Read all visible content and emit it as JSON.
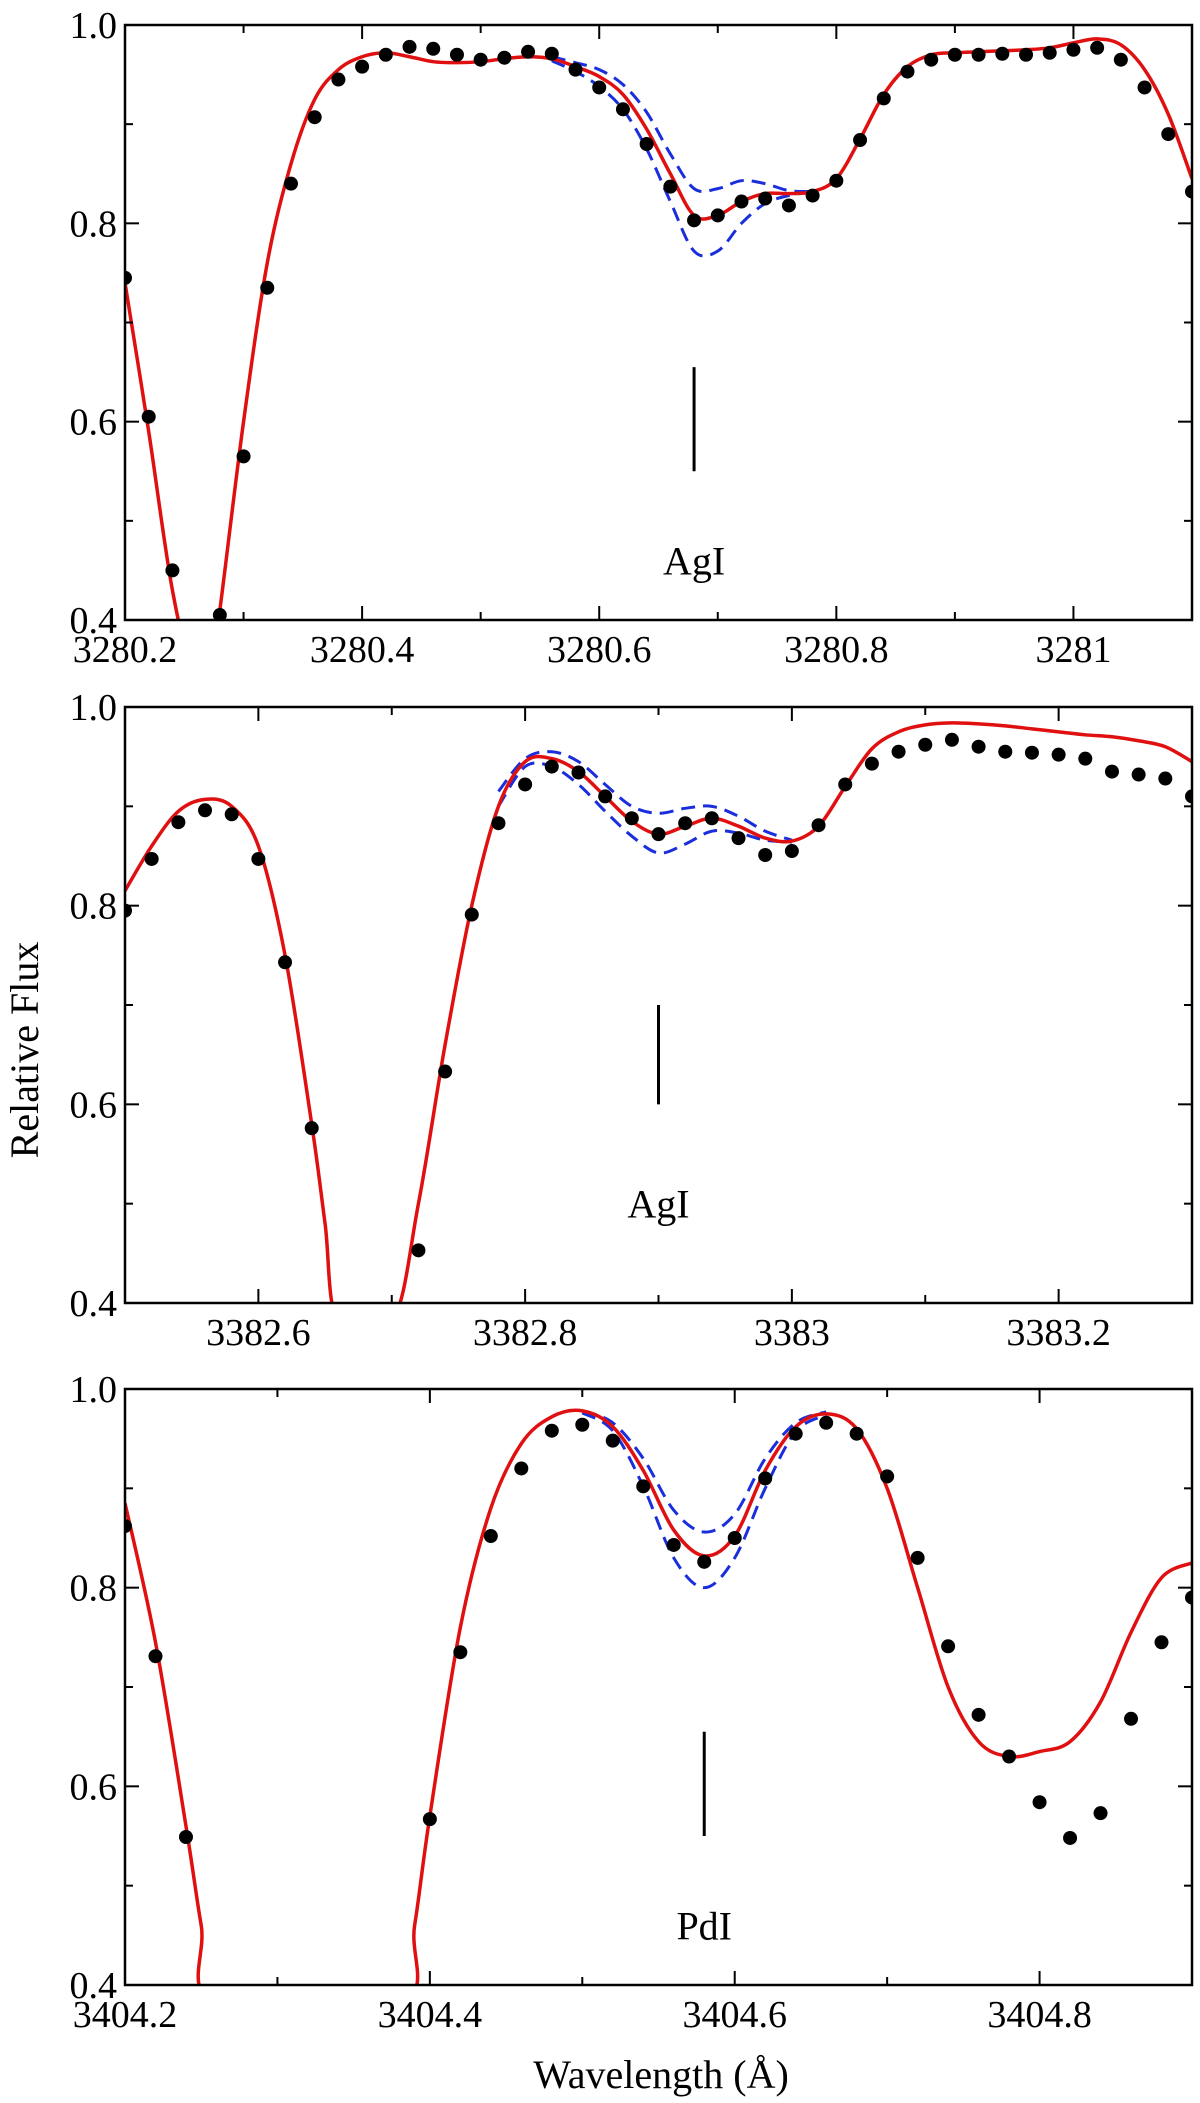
{
  "figure": {
    "ylabel": "Relative Flux",
    "xlabel": "Wavelength (Å)"
  },
  "chart_data": [
    {
      "type": "line",
      "xlim": [
        3280.2,
        3281.1
      ],
      "ylim": [
        0.4,
        1.0
      ],
      "xticks": [
        3280.2,
        3280.4,
        3280.6,
        3280.8,
        3281
      ],
      "xtick_labels": [
        "3280.2",
        "3280.4",
        "3280.6",
        "3280.8",
        "3281"
      ],
      "yticks": [
        0.4,
        0.6,
        0.8,
        1.0
      ],
      "ytick_labels": [
        "0.4",
        "0.6",
        "0.8",
        "1.0"
      ],
      "line_marker": {
        "x": 3280.68,
        "y": [
          0.55,
          0.655
        ],
        "label": "AgI",
        "label_y": 0.46
      },
      "series": [
        {
          "role": "observed",
          "style": "points",
          "color": "#000000",
          "x": [
            3280.2,
            3280.22,
            3280.24,
            3280.28,
            3280.3,
            3280.32,
            3280.34,
            3280.36,
            3280.38,
            3280.4,
            3280.42,
            3280.44,
            3280.46,
            3280.48,
            3280.5,
            3280.52,
            3280.54,
            3280.56,
            3280.58,
            3280.6,
            3280.62,
            3280.64,
            3280.66,
            3280.68,
            3280.7,
            3280.72,
            3280.74,
            3280.76,
            3280.78,
            3280.8,
            3280.82,
            3280.84,
            3280.86,
            3280.88,
            3280.9,
            3280.92,
            3280.94,
            3280.96,
            3280.98,
            3281.0,
            3281.02,
            3281.04,
            3281.06,
            3281.08,
            3281.1
          ],
          "y": [
            0.745,
            0.605,
            0.45,
            0.405,
            0.565,
            0.735,
            0.84,
            0.907,
            0.945,
            0.958,
            0.97,
            0.978,
            0.976,
            0.97,
            0.965,
            0.967,
            0.973,
            0.971,
            0.955,
            0.937,
            0.915,
            0.88,
            0.837,
            0.803,
            0.808,
            0.822,
            0.825,
            0.818,
            0.828,
            0.843,
            0.884,
            0.926,
            0.953,
            0.965,
            0.97,
            0.97,
            0.971,
            0.97,
            0.972,
            0.975,
            0.977,
            0.965,
            0.937,
            0.89,
            0.832
          ]
        },
        {
          "role": "synthesis-best",
          "style": "solid",
          "color": "#e01010",
          "x": [
            3280.2,
            3280.22,
            3280.24,
            3280.26,
            3280.27,
            3280.28,
            3280.3,
            3280.32,
            3280.34,
            3280.36,
            3280.38,
            3280.4,
            3280.42,
            3280.44,
            3280.46,
            3280.48,
            3280.5,
            3280.52,
            3280.54,
            3280.56,
            3280.58,
            3280.6,
            3280.62,
            3280.64,
            3280.66,
            3280.68,
            3280.7,
            3280.72,
            3280.74,
            3280.76,
            3280.78,
            3280.8,
            3280.82,
            3280.84,
            3280.86,
            3280.88,
            3280.9,
            3280.92,
            3280.94,
            3280.96,
            3280.98,
            3281.0,
            3281.02,
            3281.04,
            3281.06,
            3281.08,
            3281.1
          ],
          "y": [
            0.74,
            0.59,
            0.43,
            0.33,
            0.33,
            0.41,
            0.6,
            0.76,
            0.86,
            0.925,
            0.955,
            0.968,
            0.972,
            0.968,
            0.963,
            0.962,
            0.963,
            0.966,
            0.968,
            0.966,
            0.958,
            0.948,
            0.93,
            0.895,
            0.85,
            0.808,
            0.808,
            0.822,
            0.83,
            0.83,
            0.832,
            0.845,
            0.885,
            0.93,
            0.958,
            0.97,
            0.972,
            0.973,
            0.974,
            0.975,
            0.977,
            0.982,
            0.986,
            0.98,
            0.955,
            0.91,
            0.845
          ]
        },
        {
          "role": "synthesis-upper",
          "style": "dashed",
          "color": "#1a2edb",
          "x": [
            3280.56,
            3280.58,
            3280.6,
            3280.62,
            3280.64,
            3280.66,
            3280.68,
            3280.7,
            3280.72,
            3280.74,
            3280.76,
            3280.78
          ],
          "y": [
            0.968,
            0.962,
            0.955,
            0.94,
            0.912,
            0.87,
            0.835,
            0.835,
            0.843,
            0.84,
            0.833,
            0.832
          ]
        },
        {
          "role": "synthesis-lower",
          "style": "dashed",
          "color": "#1a2edb",
          "x": [
            3280.56,
            3280.58,
            3280.6,
            3280.62,
            3280.64,
            3280.66,
            3280.68,
            3280.7,
            3280.72,
            3280.74,
            3280.76,
            3280.78
          ],
          "y": [
            0.964,
            0.953,
            0.938,
            0.915,
            0.875,
            0.822,
            0.772,
            0.772,
            0.8,
            0.82,
            0.828,
            0.832
          ]
        }
      ]
    },
    {
      "type": "line",
      "xlim": [
        3382.5,
        3383.3
      ],
      "ylim": [
        0.4,
        1.0
      ],
      "xticks": [
        3382.6,
        3382.8,
        3383,
        3383.2
      ],
      "xtick_labels": [
        "3382.6",
        "3382.8",
        "3383",
        "3383.2"
      ],
      "yticks": [
        0.4,
        0.6,
        0.8,
        1.0
      ],
      "ytick_labels": [
        "0.4",
        "0.6",
        "0.8",
        "1.0"
      ],
      "line_marker": {
        "x": 3382.9,
        "y": [
          0.6,
          0.7
        ],
        "label": "AgI",
        "label_y": 0.5
      },
      "series": [
        {
          "role": "observed",
          "style": "points",
          "color": "#000000",
          "x": [
            3382.5,
            3382.52,
            3382.54,
            3382.56,
            3382.58,
            3382.6,
            3382.62,
            3382.64,
            3382.72,
            3382.74,
            3382.76,
            3382.78,
            3382.8,
            3382.82,
            3382.84,
            3382.86,
            3382.88,
            3382.9,
            3382.92,
            3382.94,
            3382.96,
            3382.98,
            3383.0,
            3383.02,
            3383.04,
            3383.06,
            3383.08,
            3383.1,
            3383.12,
            3383.14,
            3383.16,
            3383.18,
            3383.2,
            3383.22,
            3383.24,
            3383.26,
            3383.28,
            3383.3
          ],
          "y": [
            0.795,
            0.847,
            0.884,
            0.896,
            0.892,
            0.847,
            0.743,
            0.576,
            0.453,
            0.633,
            0.791,
            0.883,
            0.922,
            0.94,
            0.934,
            0.91,
            0.888,
            0.872,
            0.883,
            0.888,
            0.868,
            0.851,
            0.855,
            0.881,
            0.922,
            0.943,
            0.955,
            0.962,
            0.967,
            0.96,
            0.955,
            0.954,
            0.952,
            0.948,
            0.935,
            0.932,
            0.928,
            0.91
          ]
        },
        {
          "role": "synthesis-best",
          "style": "solid",
          "color": "#e01010",
          "x": [
            3382.5,
            3382.52,
            3382.54,
            3382.56,
            3382.58,
            3382.6,
            3382.62,
            3382.64,
            3382.65,
            3382.66,
            3382.7,
            3382.72,
            3382.74,
            3382.76,
            3382.78,
            3382.8,
            3382.82,
            3382.84,
            3382.86,
            3382.88,
            3382.9,
            3382.92,
            3382.94,
            3382.96,
            3382.98,
            3383.0,
            3383.02,
            3383.04,
            3383.06,
            3383.08,
            3383.1,
            3383.12,
            3383.14,
            3383.16,
            3383.18,
            3383.2,
            3383.22,
            3383.24,
            3383.26,
            3383.28,
            3383.3
          ],
          "y": [
            0.815,
            0.86,
            0.895,
            0.907,
            0.9,
            0.86,
            0.75,
            0.58,
            0.48,
            0.38,
            0.38,
            0.5,
            0.66,
            0.8,
            0.9,
            0.945,
            0.948,
            0.935,
            0.91,
            0.885,
            0.872,
            0.88,
            0.888,
            0.88,
            0.868,
            0.865,
            0.88,
            0.92,
            0.958,
            0.975,
            0.982,
            0.984,
            0.983,
            0.981,
            0.978,
            0.975,
            0.972,
            0.97,
            0.966,
            0.96,
            0.945
          ]
        },
        {
          "role": "synthesis-upper",
          "style": "dashed",
          "color": "#1a2edb",
          "x": [
            3382.78,
            3382.8,
            3382.82,
            3382.84,
            3382.86,
            3382.88,
            3382.9,
            3382.92,
            3382.94,
            3382.96,
            3382.98,
            3383.0
          ],
          "y": [
            0.915,
            0.948,
            0.955,
            0.945,
            0.922,
            0.9,
            0.893,
            0.898,
            0.9,
            0.89,
            0.875,
            0.866
          ]
        },
        {
          "role": "synthesis-lower",
          "style": "dashed",
          "color": "#1a2edb",
          "x": [
            3382.78,
            3382.8,
            3382.82,
            3382.84,
            3382.86,
            3382.88,
            3382.9,
            3382.92,
            3382.94,
            3382.96,
            3382.98,
            3383.0
          ],
          "y": [
            0.9,
            0.94,
            0.94,
            0.922,
            0.895,
            0.87,
            0.853,
            0.862,
            0.875,
            0.873,
            0.866,
            0.864
          ]
        }
      ]
    },
    {
      "type": "line",
      "xlim": [
        3404.2,
        3404.9
      ],
      "ylim": [
        0.4,
        1.0
      ],
      "xticks": [
        3404.2,
        3404.4,
        3404.6,
        3404.8
      ],
      "xtick_labels": [
        "3404.2",
        "3404.4",
        "3404.6",
        "3404.8"
      ],
      "yticks": [
        0.4,
        0.6,
        0.8,
        1.0
      ],
      "ytick_labels": [
        "0.4",
        "0.6",
        "0.8",
        "1.0"
      ],
      "line_marker": {
        "x": 3404.58,
        "y": [
          0.55,
          0.655
        ],
        "label": "PdI",
        "label_y": 0.46
      },
      "series": [
        {
          "role": "observed",
          "style": "points",
          "color": "#000000",
          "x": [
            3404.2,
            3404.22,
            3404.24,
            3404.4,
            3404.42,
            3404.44,
            3404.46,
            3404.48,
            3404.5,
            3404.52,
            3404.54,
            3404.56,
            3404.58,
            3404.6,
            3404.62,
            3404.64,
            3404.66,
            3404.68,
            3404.7,
            3404.72,
            3404.74,
            3404.76,
            3404.78,
            3404.8,
            3404.82,
            3404.84,
            3404.86,
            3404.88,
            3404.9
          ],
          "y": [
            0.862,
            0.731,
            0.549,
            0.567,
            0.735,
            0.852,
            0.92,
            0.958,
            0.964,
            0.948,
            0.902,
            0.843,
            0.826,
            0.85,
            0.91,
            0.955,
            0.966,
            0.955,
            0.912,
            0.83,
            0.741,
            0.672,
            0.63,
            0.584,
            0.548,
            0.573,
            0.668,
            0.745,
            0.79
          ]
        },
        {
          "role": "synthesis-best",
          "style": "solid",
          "color": "#e01010",
          "x": [
            3404.2,
            3404.22,
            3404.24,
            3404.25,
            3404.26,
            3404.38,
            3404.39,
            3404.4,
            3404.42,
            3404.44,
            3404.46,
            3404.48,
            3404.5,
            3404.52,
            3404.54,
            3404.56,
            3404.58,
            3404.6,
            3404.62,
            3404.64,
            3404.66,
            3404.68,
            3404.7,
            3404.72,
            3404.74,
            3404.76,
            3404.78,
            3404.8,
            3404.82,
            3404.84,
            3404.86,
            3404.88,
            3404.9
          ],
          "y": [
            0.885,
            0.745,
            0.56,
            0.46,
            0.38,
            0.38,
            0.46,
            0.57,
            0.76,
            0.88,
            0.945,
            0.972,
            0.978,
            0.962,
            0.918,
            0.858,
            0.832,
            0.852,
            0.918,
            0.962,
            0.975,
            0.96,
            0.9,
            0.8,
            0.7,
            0.645,
            0.63,
            0.635,
            0.645,
            0.685,
            0.755,
            0.81,
            0.825
          ]
        },
        {
          "role": "synthesis-upper",
          "style": "dashed",
          "color": "#1a2edb",
          "x": [
            3404.5,
            3404.52,
            3404.54,
            3404.56,
            3404.58,
            3404.6,
            3404.62,
            3404.64,
            3404.66
          ],
          "y": [
            0.978,
            0.966,
            0.93,
            0.878,
            0.856,
            0.874,
            0.93,
            0.966,
            0.977
          ]
        },
        {
          "role": "synthesis-lower",
          "style": "dashed",
          "color": "#1a2edb",
          "x": [
            3404.5,
            3404.52,
            3404.54,
            3404.56,
            3404.58,
            3404.6,
            3404.62,
            3404.64,
            3404.66
          ],
          "y": [
            0.976,
            0.958,
            0.902,
            0.83,
            0.8,
            0.83,
            0.9,
            0.957,
            0.974
          ]
        }
      ]
    }
  ]
}
